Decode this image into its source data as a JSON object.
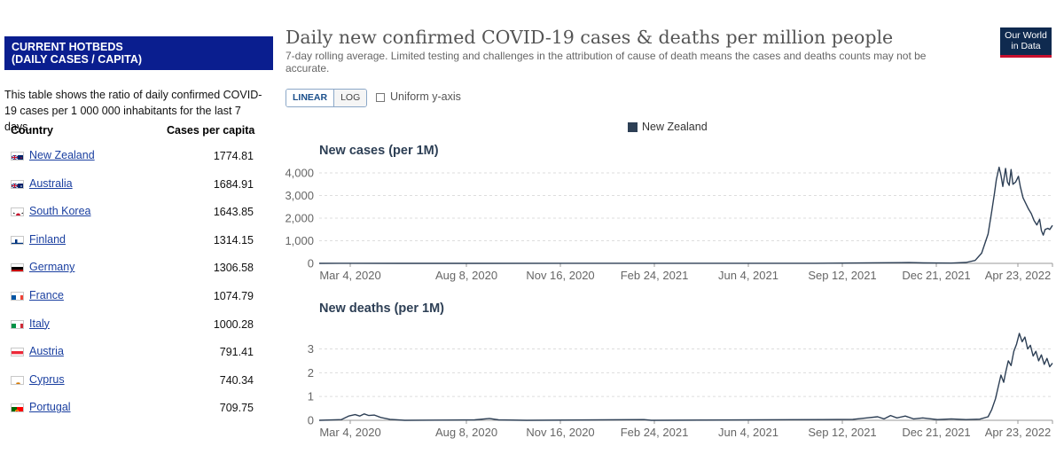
{
  "hotbeds": {
    "header_line1": "CURRENT HOTBEDS",
    "header_line2": "(DAILY CASES / CAPITA)",
    "description": "This table shows the ratio of daily confirmed COVID-19 cases per 1 000 000 inhabitants for the last 7 days.",
    "col_country": "Country",
    "col_cases": "Cases per capita",
    "rows": [
      {
        "country": "New Zealand",
        "value": "1774.81",
        "flag": "nz-flag-icon"
      },
      {
        "country": "Australia",
        "value": "1684.91",
        "flag": "au-flag-icon"
      },
      {
        "country": "South Korea",
        "value": "1643.85",
        "flag": "kr-flag-icon"
      },
      {
        "country": "Finland",
        "value": "1314.15",
        "flag": "fi-flag-icon"
      },
      {
        "country": "Germany",
        "value": "1306.58",
        "flag": "de-flag-icon"
      },
      {
        "country": "France",
        "value": "1074.79",
        "flag": "fr-flag-icon"
      },
      {
        "country": "Italy",
        "value": "1000.28",
        "flag": "it-flag-icon"
      },
      {
        "country": "Austria",
        "value": "791.41",
        "flag": "at-flag-icon"
      },
      {
        "country": "Cyprus",
        "value": "740.34",
        "flag": "cy-flag-icon"
      },
      {
        "country": "Portugal",
        "value": "709.75",
        "flag": "pt-flag-icon"
      }
    ]
  },
  "owid": {
    "title": "Daily new confirmed COVID-19 cases & deaths per million people",
    "subtitle": "7-day rolling average. Limited testing and challenges in the attribution of cause of death means the cases and deaths counts may not be accurate.",
    "logo_line1": "Our World",
    "logo_line2": "in Data",
    "scale_linear": "LINEAR",
    "scale_log": "LOG",
    "uniform_label": "Uniform y-axis",
    "legend_label": "New Zealand",
    "series_color": "#2d3f55",
    "header_color": "#0a1e8f"
  },
  "chart_data": [
    {
      "type": "line",
      "title": "New cases (per 1M)",
      "x_tick_labels": [
        "Mar 4, 2020",
        "Aug 8, 2020",
        "Nov 16, 2020",
        "Feb 24, 2021",
        "Jun 4, 2021",
        "Sep 12, 2021",
        "Dec 21, 2021",
        "Apr 23, 2022"
      ],
      "x_range": [
        "2020-03-04",
        "2022-05-10"
      ],
      "ylim": [
        0,
        4000
      ],
      "y_ticks": [
        0,
        1000,
        2000,
        3000,
        4000
      ],
      "y_tick_labels": [
        "0",
        "1,000",
        "2,000",
        "3,000",
        "4,000"
      ],
      "grid": true,
      "series": [
        {
          "name": "New Zealand",
          "points": [
            [
              "2020-03-04",
              0
            ],
            [
              "2020-04-05",
              3
            ],
            [
              "2020-06-01",
              0
            ],
            [
              "2020-08-20",
              1
            ],
            [
              "2021-08-25",
              4
            ],
            [
              "2021-10-25",
              25
            ],
            [
              "2021-12-05",
              35
            ],
            [
              "2021-12-21",
              18
            ],
            [
              "2022-01-20",
              12
            ],
            [
              "2022-02-05",
              40
            ],
            [
              "2022-02-15",
              130
            ],
            [
              "2022-02-22",
              450
            ],
            [
              "2022-03-01",
              1300
            ],
            [
              "2022-03-05",
              2300
            ],
            [
              "2022-03-08",
              3100
            ],
            [
              "2022-03-10",
              3700
            ],
            [
              "2022-03-13",
              4250
            ],
            [
              "2022-03-15",
              3900
            ],
            [
              "2022-03-17",
              3400
            ],
            [
              "2022-03-20",
              4200
            ],
            [
              "2022-03-22",
              3600
            ],
            [
              "2022-03-24",
              3450
            ],
            [
              "2022-03-26",
              4150
            ],
            [
              "2022-03-28",
              3500
            ],
            [
              "2022-03-31",
              3600
            ],
            [
              "2022-04-03",
              3850
            ],
            [
              "2022-04-05",
              3400
            ],
            [
              "2022-04-08",
              2900
            ],
            [
              "2022-04-11",
              2650
            ],
            [
              "2022-04-14",
              2400
            ],
            [
              "2022-04-17",
              2200
            ],
            [
              "2022-04-20",
              1900
            ],
            [
              "2022-04-23",
              1700
            ],
            [
              "2022-04-26",
              1950
            ],
            [
              "2022-04-28",
              1450
            ],
            [
              "2022-04-30",
              1250
            ],
            [
              "2022-05-02",
              1500
            ],
            [
              "2022-05-05",
              1550
            ],
            [
              "2022-05-07",
              1500
            ],
            [
              "2022-05-10",
              1680
            ]
          ]
        }
      ]
    },
    {
      "type": "line",
      "title": "New deaths (per 1M)",
      "x_tick_labels": [
        "Mar 4, 2020",
        "Aug 8, 2020",
        "Nov 16, 2020",
        "Feb 24, 2021",
        "Jun 4, 2021",
        "Sep 12, 2021",
        "Dec 21, 2021",
        "Apr 23, 2022"
      ],
      "x_range": [
        "2020-03-04",
        "2022-05-10"
      ],
      "ylim": [
        0,
        3.8
      ],
      "y_ticks": [
        0,
        1,
        2,
        3
      ],
      "y_tick_labels": [
        "0",
        "1",
        "2",
        "3"
      ],
      "grid": true,
      "series": [
        {
          "name": "New Zealand",
          "points": [
            [
              "2020-03-04",
              0
            ],
            [
              "2020-03-28",
              0.03
            ],
            [
              "2020-04-05",
              0.18
            ],
            [
              "2020-04-12",
              0.24
            ],
            [
              "2020-04-17",
              0.18
            ],
            [
              "2020-04-22",
              0.27
            ],
            [
              "2020-04-27",
              0.2
            ],
            [
              "2020-05-03",
              0.22
            ],
            [
              "2020-05-10",
              0.12
            ],
            [
              "2020-05-20",
              0.04
            ],
            [
              "2020-06-05",
              0
            ],
            [
              "2020-08-20",
              0.02
            ],
            [
              "2020-09-05",
              0.08
            ],
            [
              "2020-09-15",
              0.02
            ],
            [
              "2020-10-15",
              0
            ],
            [
              "2021-02-20",
              0.03
            ],
            [
              "2021-02-28",
              0
            ],
            [
              "2021-09-01",
              0.03
            ],
            [
              "2021-10-05",
              0.04
            ],
            [
              "2021-10-20",
              0.1
            ],
            [
              "2021-11-01",
              0.15
            ],
            [
              "2021-11-08",
              0.06
            ],
            [
              "2021-11-15",
              0.2
            ],
            [
              "2021-11-22",
              0.1
            ],
            [
              "2021-12-01",
              0.18
            ],
            [
              "2021-12-10",
              0.06
            ],
            [
              "2021-12-20",
              0.1
            ],
            [
              "2022-01-05",
              0.03
            ],
            [
              "2022-01-20",
              0.06
            ],
            [
              "2022-02-05",
              0.03
            ],
            [
              "2022-02-20",
              0.05
            ],
            [
              "2022-03-01",
              0.15
            ],
            [
              "2022-03-05",
              0.45
            ],
            [
              "2022-03-09",
              0.9
            ],
            [
              "2022-03-12",
              1.4
            ],
            [
              "2022-03-15",
              1.9
            ],
            [
              "2022-03-18",
              1.6
            ],
            [
              "2022-03-20",
              2.0
            ],
            [
              "2022-03-23",
              2.5
            ],
            [
              "2022-03-26",
              2.3
            ],
            [
              "2022-03-29",
              2.9
            ],
            [
              "2022-04-01",
              3.2
            ],
            [
              "2022-04-04",
              3.65
            ],
            [
              "2022-04-07",
              3.3
            ],
            [
              "2022-04-10",
              3.5
            ],
            [
              "2022-04-13",
              3.0
            ],
            [
              "2022-04-16",
              3.15
            ],
            [
              "2022-04-19",
              2.7
            ],
            [
              "2022-04-22",
              2.9
            ],
            [
              "2022-04-25",
              2.5
            ],
            [
              "2022-04-28",
              2.75
            ],
            [
              "2022-05-01",
              2.35
            ],
            [
              "2022-05-04",
              2.6
            ],
            [
              "2022-05-07",
              2.25
            ],
            [
              "2022-05-10",
              2.4
            ]
          ]
        }
      ]
    }
  ]
}
